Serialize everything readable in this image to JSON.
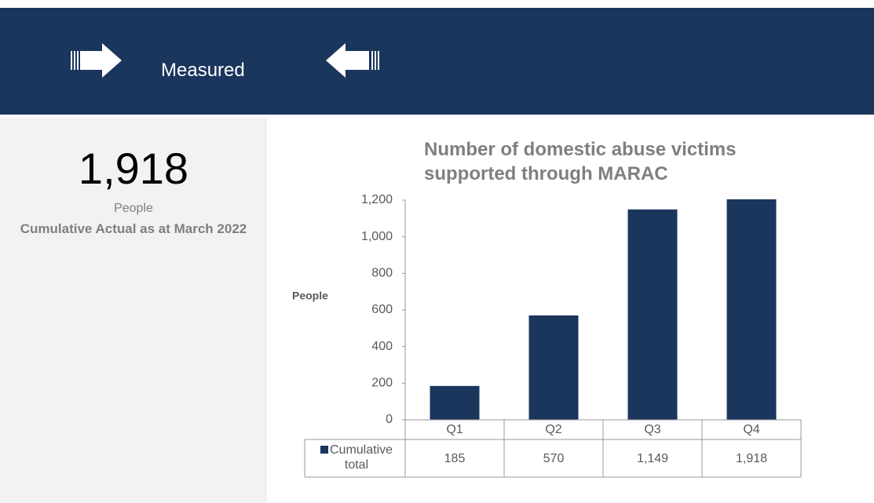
{
  "header": {
    "title": "Measured"
  },
  "kpi": {
    "value": "1,918",
    "unit": "People",
    "caption": "Cumulative Actual as at March 2022"
  },
  "chart_data": {
    "type": "bar",
    "title": "Number of domestic abuse victims supported through MARAC",
    "ylabel": "People",
    "categories": [
      "Q1",
      "Q2",
      "Q3",
      "Q4"
    ],
    "series": [
      {
        "name": "Cumulative total",
        "color": "#1b365d",
        "values": [
          185,
          570,
          1149,
          1918
        ],
        "value_labels": [
          "185",
          "570",
          "1,149",
          "1,918"
        ]
      }
    ],
    "ylim": [
      0,
      1200
    ],
    "yticks": [
      0,
      200,
      400,
      600,
      800,
      {
        "value": 1000,
        "label": "1,000"
      },
      {
        "value": 1200,
        "label": "1,200"
      }
    ],
    "grid": false
  }
}
